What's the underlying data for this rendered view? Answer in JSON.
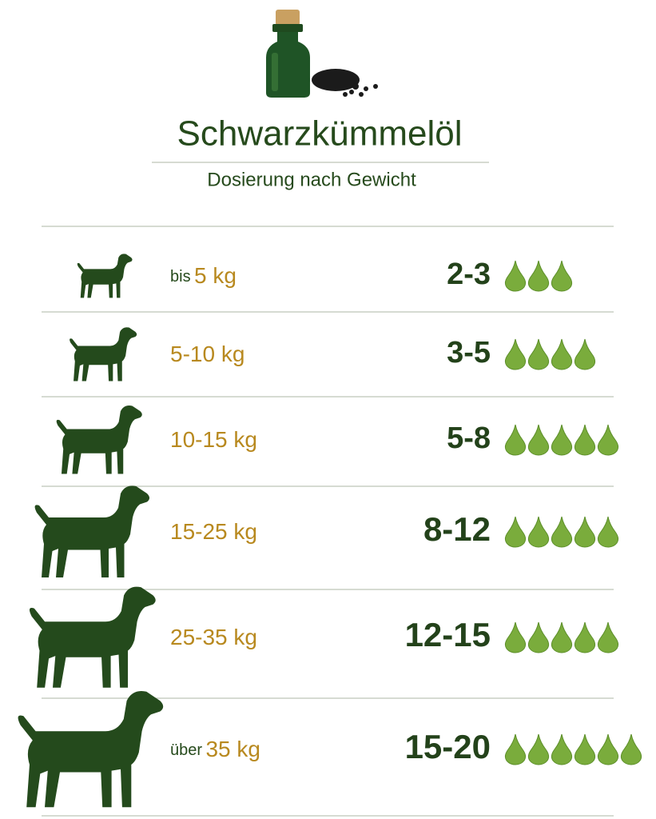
{
  "header": {
    "title": "Schwarzkümmelöl",
    "subtitle": "Dosierung nach Gewicht"
  },
  "rows": [
    {
      "prefix": "bis",
      "weight": "5 kg",
      "dose": "2-3",
      "drops": 3
    },
    {
      "weight": "5-10 kg",
      "dose": "3-5",
      "drops": 4
    },
    {
      "weight": "10-15 kg",
      "dose": "5-8",
      "drops": 5
    },
    {
      "weight": "15-25 kg",
      "dose": "8-12",
      "drops": 5
    },
    {
      "weight": "25-35 kg",
      "dose": "12-15",
      "drops": 5
    },
    {
      "prefix": "über",
      "weight": "35 kg",
      "dose": "15-20",
      "drops": 6
    }
  ]
}
